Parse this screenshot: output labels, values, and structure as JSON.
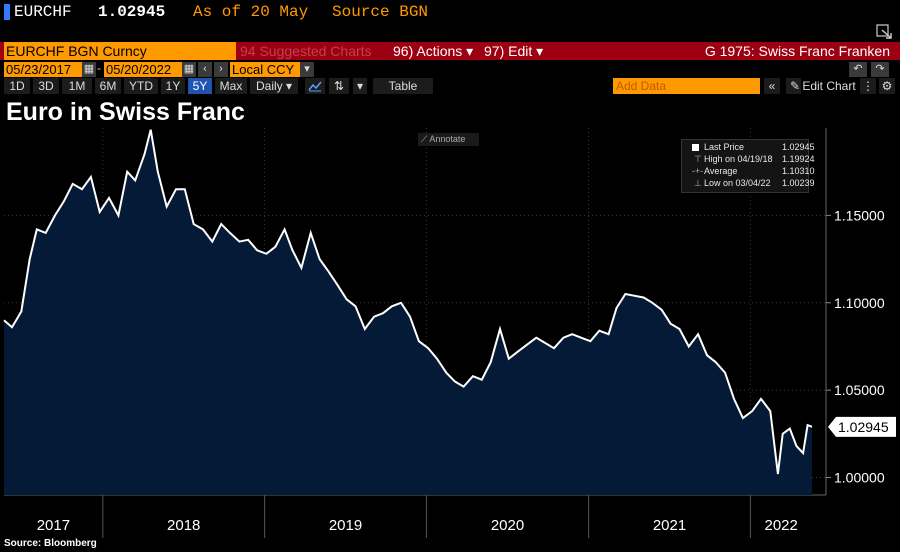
{
  "header": {
    "ticker": "EURCHF",
    "price": "1.02945",
    "as_of": "As of 20 May",
    "source": "Source BGN"
  },
  "toolbar": {
    "security": "EURCHF BGN Curncy",
    "suggested": "94 Suggested Charts",
    "actions": "96) Actions ▾",
    "edit": "97) Edit ▾",
    "chart_name": "G 1975: Swiss Franc Franken",
    "start_date": "05/23/2017",
    "end_date": "05/20/2022",
    "currency": "Local CCY",
    "ranges": [
      "1D",
      "3D",
      "1M",
      "6M",
      "YTD",
      "1Y",
      "5Y",
      "Max"
    ],
    "selected_range": "5Y",
    "frequency": "Daily ▾",
    "table_label": "Table",
    "add_data_placeholder": "Add Data",
    "edit_chart": "Edit Chart"
  },
  "annotate_label": "Annotate",
  "footer": {
    "source": "Source: Bloomberg"
  },
  "colors": {
    "area": "#041a36",
    "line": "#ffffff",
    "accent": "#ff9900",
    "bar": "#9d0010"
  },
  "chart_data": {
    "type": "area",
    "title": "Euro in Swiss Franc",
    "legend": [
      {
        "label": "Last Price",
        "value": "1.02945"
      },
      {
        "label": "High on 04/19/18",
        "value": "1.19924"
      },
      {
        "label": "Average",
        "value": "1.10310"
      },
      {
        "label": "Low on 03/04/22",
        "value": "1.00239"
      }
    ],
    "legend_position": "top-right",
    "last_value_label": "1.02945",
    "x_ticks": [
      "2017",
      "2018",
      "2019",
      "2020",
      "2021",
      "2022"
    ],
    "y_ticks": [
      1.0,
      1.05,
      1.1,
      1.15
    ],
    "y_tick_labels": [
      "1.00000",
      "1.05000",
      "1.10000",
      "1.15000"
    ],
    "ylim": [
      0.99,
      1.2
    ],
    "xlim": [
      "2017-05-23",
      "2022-05-20"
    ],
    "series": [
      {
        "x": [
          "2017-05-23",
          "2017-06-10",
          "2017-07-01",
          "2017-07-20",
          "2017-08-05",
          "2017-08-25",
          "2017-09-15",
          "2017-10-05",
          "2017-10-25",
          "2017-11-15",
          "2017-12-05",
          "2017-12-25",
          "2018-01-15",
          "2018-02-05",
          "2018-02-25",
          "2018-03-15",
          "2018-04-05",
          "2018-04-19",
          "2018-05-05",
          "2018-05-25",
          "2018-06-15",
          "2018-07-05",
          "2018-07-25",
          "2018-08-15",
          "2018-09-05",
          "2018-09-25",
          "2018-10-15",
          "2018-11-05",
          "2018-11-25",
          "2018-12-15",
          "2019-01-05",
          "2019-01-25",
          "2019-02-15",
          "2019-03-05",
          "2019-03-25",
          "2019-04-15",
          "2019-05-05",
          "2019-05-25",
          "2019-06-15",
          "2019-07-05",
          "2019-07-25",
          "2019-08-15",
          "2019-09-05",
          "2019-09-25",
          "2019-10-15",
          "2019-11-05",
          "2019-11-25",
          "2019-12-15",
          "2020-01-05",
          "2020-01-25",
          "2020-02-15",
          "2020-03-05",
          "2020-03-25",
          "2020-04-15",
          "2020-05-05",
          "2020-05-25",
          "2020-06-15",
          "2020-07-05",
          "2020-07-25",
          "2020-08-15",
          "2020-09-05",
          "2020-09-25",
          "2020-10-15",
          "2020-11-05",
          "2020-11-25",
          "2020-12-15",
          "2021-01-05",
          "2021-01-25",
          "2021-02-15",
          "2021-03-05",
          "2021-03-25",
          "2021-04-15",
          "2021-05-05",
          "2021-05-25",
          "2021-06-15",
          "2021-07-05",
          "2021-07-25",
          "2021-08-15",
          "2021-09-05",
          "2021-09-25",
          "2021-10-15",
          "2021-11-05",
          "2021-11-25",
          "2021-12-15",
          "2022-01-05",
          "2022-01-25",
          "2022-02-15",
          "2022-03-04",
          "2022-03-15",
          "2022-03-31",
          "2022-04-15",
          "2022-04-30",
          "2022-05-10",
          "2022-05-20"
        ],
        "values": [
          1.09,
          1.086,
          1.095,
          1.125,
          1.142,
          1.14,
          1.15,
          1.158,
          1.168,
          1.165,
          1.172,
          1.152,
          1.16,
          1.15,
          1.175,
          1.17,
          1.185,
          1.199,
          1.175,
          1.155,
          1.165,
          1.165,
          1.145,
          1.142,
          1.135,
          1.145,
          1.14,
          1.135,
          1.136,
          1.13,
          1.128,
          1.132,
          1.142,
          1.13,
          1.12,
          1.14,
          1.125,
          1.118,
          1.11,
          1.102,
          1.098,
          1.085,
          1.092,
          1.094,
          1.098,
          1.1,
          1.092,
          1.078,
          1.074,
          1.068,
          1.06,
          1.055,
          1.052,
          1.058,
          1.056,
          1.066,
          1.085,
          1.068,
          1.072,
          1.076,
          1.08,
          1.077,
          1.074,
          1.08,
          1.082,
          1.08,
          1.078,
          1.084,
          1.082,
          1.097,
          1.105,
          1.104,
          1.103,
          1.1,
          1.096,
          1.088,
          1.085,
          1.075,
          1.082,
          1.07,
          1.066,
          1.06,
          1.045,
          1.034,
          1.038,
          1.045,
          1.038,
          1.002,
          1.025,
          1.028,
          1.018,
          1.014,
          1.03,
          1.029
        ]
      }
    ]
  }
}
